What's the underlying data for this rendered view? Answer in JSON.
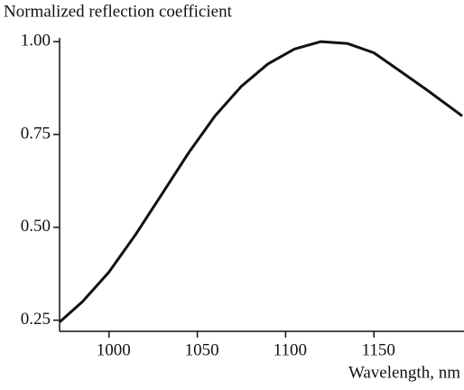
{
  "chart_data": {
    "type": "line",
    "y_label": "Normalized reflection coefficient",
    "x_label": "Wavelength, nm",
    "x": [
      972,
      985,
      1000,
      1015,
      1030,
      1045,
      1060,
      1075,
      1090,
      1105,
      1120,
      1135,
      1150,
      1165,
      1180,
      1200
    ],
    "series": [
      {
        "color": "#111111",
        "values": [
          0.245,
          0.3,
          0.38,
          0.48,
          0.59,
          0.7,
          0.8,
          0.88,
          0.94,
          0.98,
          1.0,
          0.995,
          0.97,
          0.92,
          0.87,
          0.8
        ]
      }
    ],
    "xlim": [
      972,
      1201
    ],
    "ylim": [
      0.22,
      1.01
    ],
    "xticks": [
      1000,
      1050,
      1100,
      1150
    ],
    "yticks": [
      {
        "value": 0.25,
        "label": "0.25"
      },
      {
        "value": 0.5,
        "label": "0.50"
      },
      {
        "value": 0.75,
        "label": "0.75"
      },
      {
        "value": 1.0,
        "label": "1.00"
      }
    ]
  }
}
